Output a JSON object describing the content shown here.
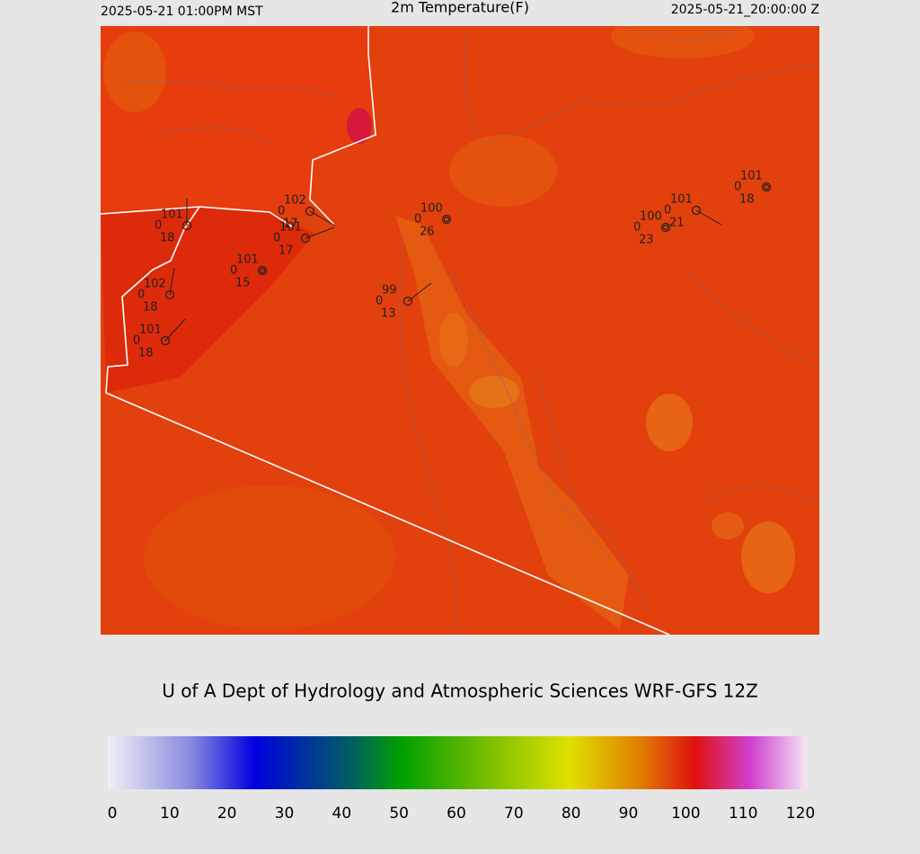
{
  "header": {
    "left": "2025-05-21 01:00PM MST",
    "title": "2m Temperature(F)",
    "right": "2025-05-21_20:00:00 Z"
  },
  "stations": [
    {
      "temp": 101,
      "mid": 0,
      "dew": 18
    },
    {
      "temp": 102,
      "mid": 0,
      "dew": 17
    },
    {
      "temp": 101,
      "mid": 0,
      "dew": 17
    },
    {
      "temp": 101,
      "mid": 0,
      "dew": 15
    },
    {
      "temp": 102,
      "mid": 0,
      "dew": 18
    },
    {
      "temp": 101,
      "mid": 0,
      "dew": 18
    },
    {
      "temp": 100,
      "mid": 0,
      "dew": 26
    },
    {
      "temp": 99,
      "mid": 0,
      "dew": 13
    },
    {
      "temp": 101,
      "mid": 0,
      "dew": 21
    },
    {
      "temp": 100,
      "mid": 0,
      "dew": 23
    },
    {
      "temp": 101,
      "mid": 0,
      "dew": 18
    }
  ],
  "credit": "U of A Dept of Hydrology and Atmospheric Sciences WRF-GFS 12Z",
  "colorbar": {
    "ticks": [
      0,
      10,
      20,
      30,
      40,
      50,
      60,
      70,
      80,
      90,
      100,
      110,
      120
    ]
  }
}
